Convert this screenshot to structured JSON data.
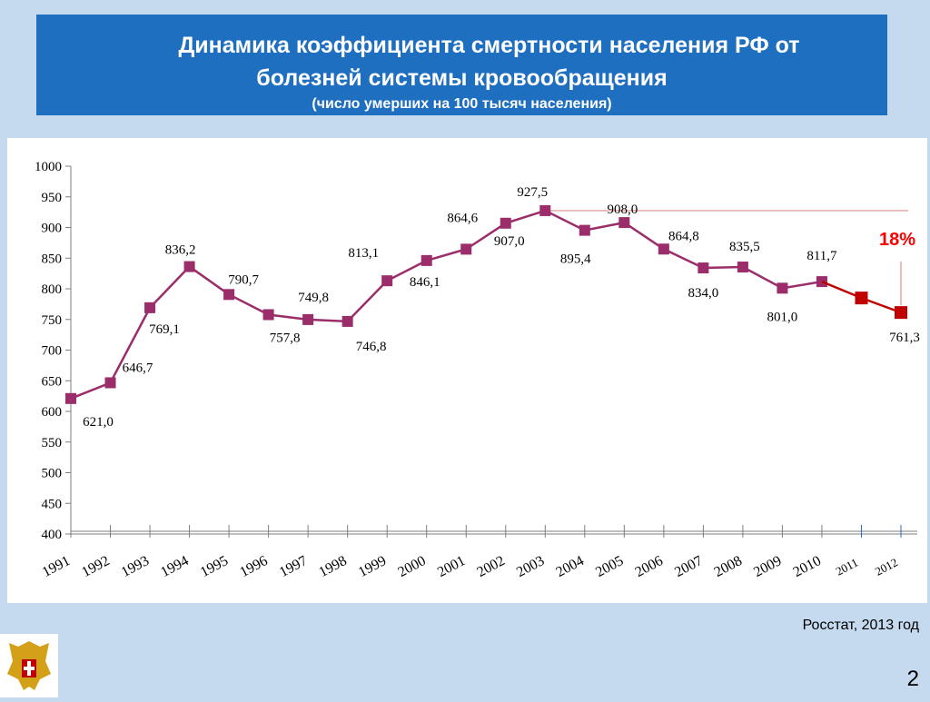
{
  "title": {
    "line1": "Динамика коэффициента смертности населения РФ от",
    "line2": "болезней системы кровообращения",
    "subtitle": "(число умерших на 100 тысяч населения)"
  },
  "source": "Росстат, 2013 год",
  "page_number": "2",
  "annotation": "18%",
  "colors": {
    "title_bg": "#1f6fc0",
    "series_main": "#9b2d6a",
    "series_forecast": "#c00000",
    "reference_line": "#e38b8b",
    "annotation": "#ff0000",
    "axis": "#7f7f7f"
  },
  "chart_data": {
    "type": "line",
    "x": [
      "1991",
      "1992",
      "1993",
      "1994",
      "1995",
      "1996",
      "1997",
      "1998",
      "1999",
      "2000",
      "2001",
      "2002",
      "2003",
      "2004",
      "2005",
      "2006",
      "2007",
      "2008",
      "2009",
      "2010",
      "2011",
      "2012"
    ],
    "ylim": [
      400,
      1000
    ],
    "yticks": [
      400,
      450,
      500,
      550,
      600,
      650,
      700,
      750,
      800,
      850,
      900,
      950,
      1000
    ],
    "grid": false,
    "series": [
      {
        "values": [
          621.0,
          646.7,
          769.1,
          836.2,
          790.7,
          757.8,
          749.8,
          746.8,
          813.1,
          846.1,
          864.6,
          907.0,
          927.5,
          895.4,
          908.0,
          864.8,
          834.0,
          835.5,
          801.0,
          811.7,
          null,
          null
        ],
        "labels": [
          "621,0",
          "646,7",
          "769,1",
          "836,2",
          "790,7",
          "757,8",
          "749,8",
          "746,8",
          "813,1",
          "846,1",
          "864,6",
          "907,0",
          "927,5",
          "895,4",
          "908,0",
          "864,8",
          "834,0",
          "835,5",
          "801,0",
          "811,7",
          "",
          ""
        ]
      },
      {
        "values": [
          null,
          null,
          null,
          null,
          null,
          null,
          null,
          null,
          null,
          null,
          null,
          null,
          null,
          null,
          null,
          null,
          null,
          null,
          null,
          811.7,
          785,
          761.3
        ],
        "labels": [
          "",
          "",
          "",
          "",
          "",
          "",
          "",
          "",
          "",
          "",
          "",
          "",
          "",
          "",
          "",
          "",
          "",
          "",
          "",
          "",
          "",
          "761,3"
        ]
      }
    ],
    "reference_line_value": 927.5
  }
}
